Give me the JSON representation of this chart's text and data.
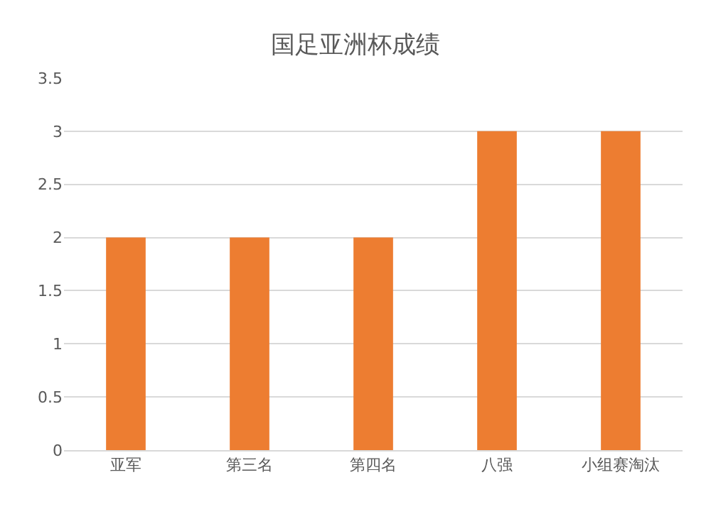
{
  "chart_data": {
    "type": "bar",
    "title": "国足亚洲杯成绩",
    "categories": [
      "亚军",
      "第三名",
      "第四名",
      "八强",
      "小组赛淘汰"
    ],
    "values": [
      2,
      2,
      2,
      3,
      3
    ],
    "color": "#ed7d31",
    "ylim": [
      0,
      3.5
    ],
    "yticks": [
      0,
      0.5,
      1,
      1.5,
      2,
      2.5,
      3,
      3.5
    ],
    "grid": "y"
  }
}
